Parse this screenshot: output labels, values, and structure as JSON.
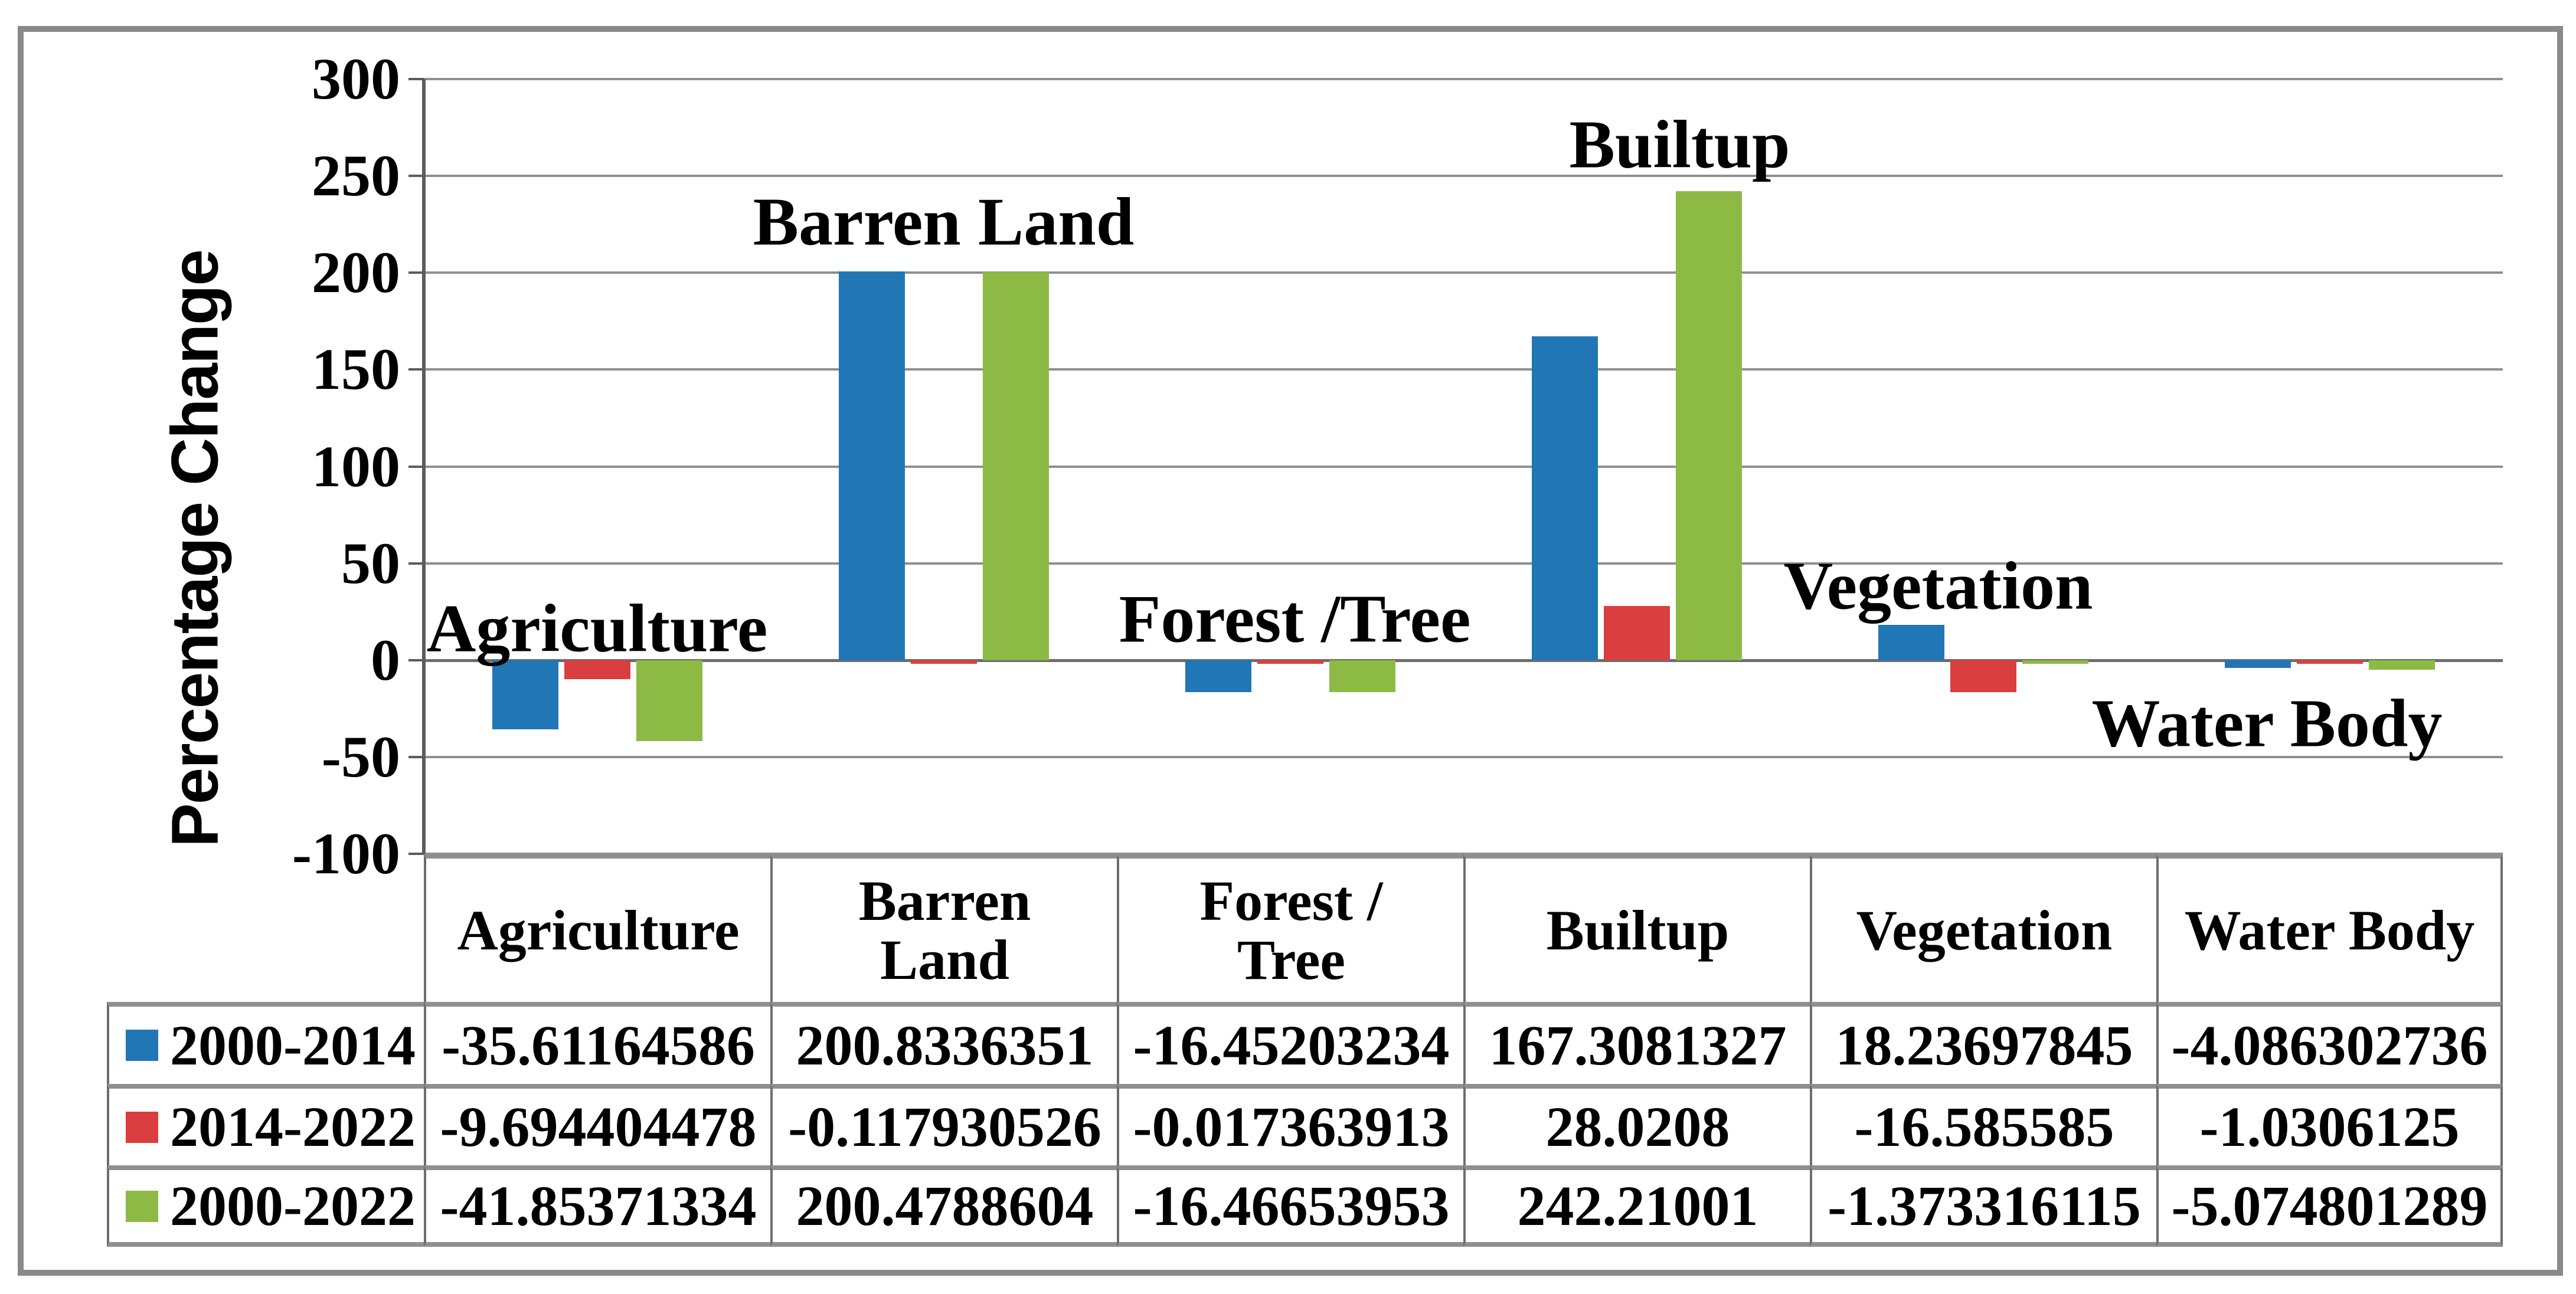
{
  "figure": {
    "type_label": "clustered-column-chart-with-data-table",
    "background": "#ffffff",
    "frame_color": "#898989"
  },
  "chart_data": {
    "type": "bar",
    "title": "",
    "xlabel": "",
    "ylabel": "Percentage Change",
    "ylim": [
      -100,
      300
    ],
    "ytick_step": 50,
    "yticks": [
      300,
      250,
      200,
      150,
      100,
      50,
      0,
      -50,
      -100
    ],
    "grid": true,
    "legend_position": "table-left",
    "categories": [
      "Agriculture",
      "Barren Land",
      "Forest / Tree",
      "Builtup",
      "Vegetation",
      "Water Body"
    ],
    "series": [
      {
        "name": "2000-2014",
        "color": "#2176B5",
        "values": [
          -35.61164586,
          200.8336351,
          -16.45203234,
          167.3081327,
          18.23697845,
          -4.086302736
        ]
      },
      {
        "name": "2014-2022",
        "color": "#DB3E3E",
        "values": [
          -9.694404478,
          -0.117930526,
          -0.017363913,
          28.0208,
          -16.585585,
          -1.0306125
        ]
      },
      {
        "name": "2000-2022",
        "color": "#8CBA44",
        "values": [
          -41.85371334,
          200.4788604,
          -16.46653953,
          242.21001,
          -1.373316115,
          -5.074801289
        ]
      }
    ],
    "annotations": [
      {
        "text": "Agriculture",
        "y": 16,
        "dx": 0
      },
      {
        "text": "Barren Land",
        "y": 226,
        "dx": 0
      },
      {
        "text": "Forest /Tree",
        "y": 21,
        "dx": 8
      },
      {
        "text": "Builtup",
        "y": 266,
        "dx": 73
      },
      {
        "text": "Vegetation",
        "y": 38,
        "dx": -76
      },
      {
        "text": "Water Body",
        "y": -33,
        "dx": -106
      }
    ]
  },
  "table": {
    "headers": [
      "Agriculture",
      "Barren\nLand",
      "Forest /\nTree",
      "Builtup",
      "Vegetation",
      "Water Body"
    ],
    "rows": [
      {
        "label": "2000-2014",
        "key_color": "#2176B5",
        "values": [
          "-35.61164586",
          "200.8336351",
          "-16.45203234",
          "167.3081327",
          "18.23697845",
          "-4.086302736"
        ]
      },
      {
        "label": "2014-2022",
        "key_color": "#DB3E3E",
        "values": [
          "-9.694404478",
          "-0.117930526",
          "-0.017363913",
          "28.0208",
          "-16.585585",
          "-1.0306125"
        ]
      },
      {
        "label": "2000-2022",
        "key_color": "#8CBA44",
        "values": [
          "-41.85371334",
          "200.4788604",
          "-16.46653953",
          "242.21001",
          "-1.373316115",
          "-5.074801289"
        ]
      }
    ]
  }
}
